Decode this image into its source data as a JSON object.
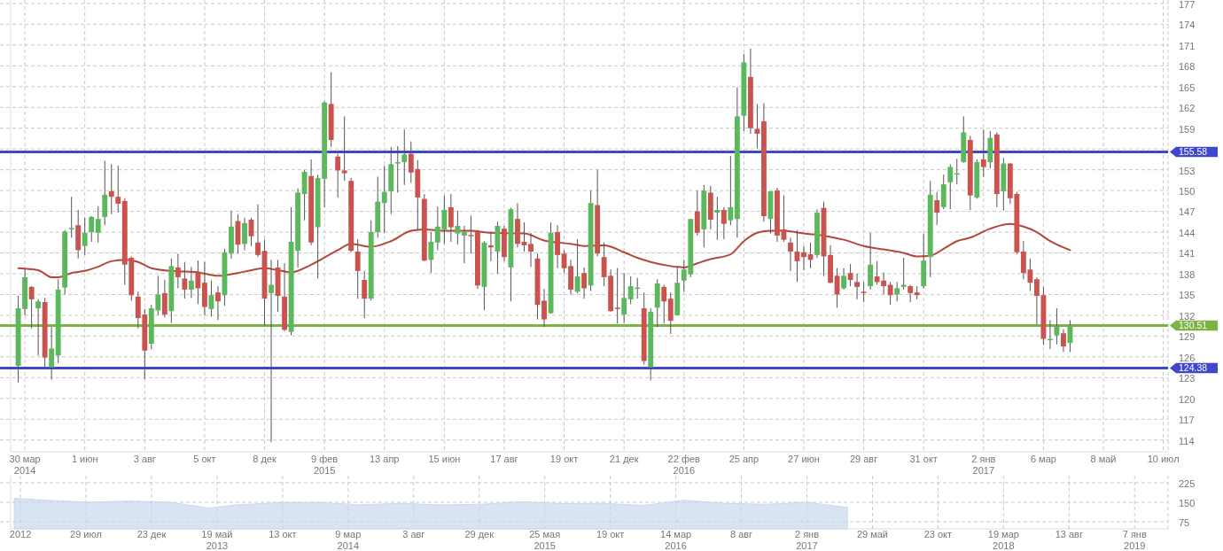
{
  "chart_data": [
    {
      "type": "candlestick",
      "grid": true,
      "colors": [
        "#5cb85c",
        "#5cb85c",
        "#c9534f",
        "#5cb85c",
        "#c9534f",
        "#5cb85c",
        "#5cb85c",
        "#5cb85c",
        "#5cb85c",
        "#c9534f",
        "#5cb85c",
        "#5cb85c",
        "#5cb85c",
        "#5cb85c",
        "#c9534f",
        "#c9534f",
        "#c9534f",
        "#c9534f",
        "#c9534f",
        "#c9534f",
        "#5cb85c",
        "#5cb85c",
        "#c9534f",
        "#5cb85c",
        "#c9534f",
        "#c9534f",
        "#5cb85c",
        "#c9534f",
        "#c9534f",
        "#5cb85c",
        "#c9534f",
        "#5cb85c",
        "#5cb85c",
        "#c9534f",
        "#5cb85c",
        "#c9534f",
        "#c9534f",
        "#c9534f",
        "#5cb85c",
        "#c9534f",
        "#c9534f",
        "#5cb85c",
        "#5cb85c",
        "#5cb85c",
        "#c9534f",
        "#5cb85c",
        "#5cb85c",
        "#c9534f",
        "#c9534f",
        "#c9534f",
        "#c9534f",
        "#c9534f",
        "#c9534f",
        "#5cb85c",
        "#5cb85c",
        "#5cb85c",
        "#5cb85c",
        "#5cb85c",
        "#5cb85c",
        "#c9534f",
        "#c9534f",
        "#c9534f",
        "#5cb85c",
        "#5cb85c",
        "#5cb85c",
        "#c9534f",
        "#5cb85c",
        "#5cb85c",
        "#c9534f",
        "#c9534f",
        "#5cb85c",
        "#c9534f",
        "#5cb85c",
        "#c9534f",
        "#5cb85c",
        "#c9534f",
        "#c9534f",
        "#c9534f",
        "#c9534f",
        "#c9534f",
        "#5cb85c",
        "#c9534f",
        "#c9534f",
        "#c9534f",
        "#5cb85c",
        "#c9534f",
        "#5cb85c",
        "#c9534f",
        "#c9534f",
        "#c9534f",
        "#c9534f",
        "#5cb85c",
        "#5cb85c",
        "#5cb85c",
        "#c9534f",
        "#5cb85c",
        "#5cb85c",
        "#c9534f",
        "#c9534f",
        "#5cb85c",
        "#5cb85c",
        "#5cb85c",
        "#c9534f",
        "#5cb85c",
        "#c9534f",
        "#5cb85c",
        "#c9534f",
        "#5cb85c",
        "#5cb85c",
        "#5cb85c",
        "#c9534f",
        "#c9534f",
        "#c9534f",
        "#5cb85c",
        "#c9534f",
        "#c9534f",
        "#c9534f",
        "#c9534f",
        "#c9534f",
        "#c9534f",
        "#5cb85c",
        "#c9534f",
        "#c9534f",
        "#c9534f",
        "#5cb85c",
        "#c9534f",
        "#c9534f",
        "#c9534f",
        "#5cb85c",
        "#c9534f",
        "#c9534f",
        "#c9534f",
        "#5cb85c",
        "#5cb85c",
        "#c9534f",
        "#c9534f",
        "#5cb85c",
        "#5cb85c",
        "#c9534f",
        "#5cb85c",
        "#5cb85c",
        "#5cb85c",
        "#5cb85c",
        "#c9534f",
        "#5cb85c",
        "#c9534f",
        "#5cb85c",
        "#c9534f",
        "#5cb85c",
        "#c9534f",
        "#c9534f",
        "#c9534f",
        "#c9534f",
        "#c9534f",
        "#c9534f",
        "#5cb85c",
        "#5cb85c",
        "#c9534f",
        "#5cb85c"
      ],
      "xlim": [
        "2014-03-15",
        "2017-07-14"
      ],
      "ylim": [
        112.3,
        177.5
      ],
      "xticks": [
        {
          "value": "2014-03-30",
          "label": "30 мар\n2014"
        },
        {
          "value": "2014-06-01",
          "label": "1 июн"
        },
        {
          "value": "2014-08-03",
          "label": "3 авг"
        },
        {
          "value": "2014-10-05",
          "label": "5 окт"
        },
        {
          "value": "2014-12-07",
          "label": "8 дек"
        },
        {
          "value": "2015-02-08",
          "label": "9 фев\n2015"
        },
        {
          "value": "2015-04-12",
          "label": "13 апр"
        },
        {
          "value": "2015-06-14",
          "label": "15 июн"
        },
        {
          "value": "2015-08-16",
          "label": "17 авг"
        },
        {
          "value": "2015-10-18",
          "label": "19 окт"
        },
        {
          "value": "2015-12-20",
          "label": "21 дек"
        },
        {
          "value": "2016-02-21",
          "label": "22 фев\n2016"
        },
        {
          "value": "2016-04-24",
          "label": "25 апр"
        },
        {
          "value": "2016-06-26",
          "label": "27 июн"
        },
        {
          "value": "2016-08-28",
          "label": "29 авг"
        },
        {
          "value": "2016-10-30",
          "label": "31 окт"
        },
        {
          "value": "2017-01-01",
          "label": "2 янв\n2017"
        },
        {
          "value": "2017-03-05",
          "label": "6 мар"
        },
        {
          "value": "2017-05-07",
          "label": "8 май"
        },
        {
          "value": "2017-07-09",
          "label": "10 июл"
        }
      ],
      "yticks": [
        114,
        117,
        120,
        123,
        126,
        129,
        132,
        135,
        138,
        141,
        144,
        147,
        150,
        153,
        {
          "value": 156,
          "label": null
        },
        159,
        162,
        165,
        168,
        171,
        174,
        177
      ],
      "ref_lines": [
        {
          "axis": "y",
          "value": 155.58,
          "label": "155.58",
          "color": "#3f48cc"
        },
        {
          "axis": "y",
          "value": 130.51,
          "label": "130.51",
          "color": "#7cb342"
        },
        {
          "axis": "y",
          "value": 124.38,
          "label": "124.38",
          "color": "#3f48cc"
        }
      ],
      "x": [
        "2014-03-23",
        "2014-03-30",
        "2014-04-06",
        "2014-04-13",
        "2014-04-20",
        "2014-04-27",
        "2014-05-04",
        "2014-05-11",
        "2014-05-18",
        "2014-05-25",
        "2014-06-01",
        "2014-06-08",
        "2014-06-15",
        "2014-06-22",
        "2014-06-29",
        "2014-07-06",
        "2014-07-13",
        "2014-07-20",
        "2014-07-27",
        "2014-08-03",
        "2014-08-10",
        "2014-08-17",
        "2014-08-24",
        "2014-08-31",
        "2014-09-07",
        "2014-09-14",
        "2014-09-21",
        "2014-09-28",
        "2014-10-05",
        "2014-10-12",
        "2014-10-19",
        "2014-10-26",
        "2014-11-02",
        "2014-11-09",
        "2014-11-16",
        "2014-11-23",
        "2014-11-30",
        "2014-12-07",
        "2014-12-14",
        "2014-12-21",
        "2014-12-28",
        "2015-01-04",
        "2015-01-11",
        "2015-01-18",
        "2015-01-25",
        "2015-02-01",
        "2015-02-08",
        "2015-02-15",
        "2015-02-22",
        "2015-03-01",
        "2015-03-08",
        "2015-03-15",
        "2015-03-22",
        "2015-03-29",
        "2015-04-05",
        "2015-04-12",
        "2015-04-19",
        "2015-04-26",
        "2015-05-03",
        "2015-05-10",
        "2015-05-17",
        "2015-05-24",
        "2015-05-31",
        "2015-06-07",
        "2015-06-14",
        "2015-06-21",
        "2015-06-28",
        "2015-07-05",
        "2015-07-12",
        "2015-07-19",
        "2015-07-26",
        "2015-08-02",
        "2015-08-09",
        "2015-08-16",
        "2015-08-23",
        "2015-08-30",
        "2015-09-06",
        "2015-09-13",
        "2015-09-20",
        "2015-09-27",
        "2015-10-04",
        "2015-10-11",
        "2015-10-18",
        "2015-10-25",
        "2015-11-01",
        "2015-11-08",
        "2015-11-15",
        "2015-11-22",
        "2015-11-29",
        "2015-12-06",
        "2015-12-13",
        "2015-12-20",
        "2015-12-27",
        "2016-01-03",
        "2016-01-10",
        "2016-01-17",
        "2016-01-24",
        "2016-01-31",
        "2016-02-07",
        "2016-02-14",
        "2016-02-21",
        "2016-02-28",
        "2016-03-06",
        "2016-03-13",
        "2016-03-20",
        "2016-03-27",
        "2016-04-03",
        "2016-04-10",
        "2016-04-17",
        "2016-04-24",
        "2016-05-01",
        "2016-05-08",
        "2016-05-15",
        "2016-05-22",
        "2016-05-29",
        "2016-06-05",
        "2016-06-12",
        "2016-06-19",
        "2016-06-26",
        "2016-07-03",
        "2016-07-10",
        "2016-07-17",
        "2016-07-24",
        "2016-07-31",
        "2016-08-07",
        "2016-08-14",
        "2016-08-21",
        "2016-08-28",
        "2016-09-04",
        "2016-09-11",
        "2016-09-18",
        "2016-09-25",
        "2016-10-02",
        "2016-10-09",
        "2016-10-16",
        "2016-10-23",
        "2016-10-30",
        "2016-11-06",
        "2016-11-13",
        "2016-11-20",
        "2016-11-27",
        "2016-12-04",
        "2016-12-11",
        "2016-12-18",
        "2016-12-25",
        "2017-01-01",
        "2017-01-08",
        "2017-01-15",
        "2017-01-22",
        "2017-01-29",
        "2017-02-05",
        "2017-02-12",
        "2017-02-19",
        "2017-02-26",
        "2017-03-05",
        "2017-03-12",
        "2017-03-19",
        "2017-03-26",
        "2017-04-02"
      ],
      "ohlc": [
        [
          124.7,
          134.8,
          122.3,
          133.0
        ],
        [
          132.9,
          138.6,
          132.0,
          137.5
        ],
        [
          136.1,
          136.2,
          130.1,
          134.3
        ],
        [
          133.0,
          134.3,
          126.2,
          134.0
        ],
        [
          133.9,
          134.5,
          124.5,
          125.9
        ],
        [
          124.5,
          130.3,
          122.7,
          127.2
        ],
        [
          126.2,
          137.2,
          125.1,
          135.7
        ],
        [
          136.0,
          144.3,
          135.0,
          144.1
        ],
        [
          144.4,
          149.1,
          143.2,
          144.6
        ],
        [
          145.0,
          147.2,
          140.2,
          141.4
        ],
        [
          142.0,
          146.1,
          140.7,
          143.9
        ],
        [
          144.0,
          146.3,
          142.6,
          146.2
        ],
        [
          143.9,
          147.7,
          142.5,
          145.9
        ],
        [
          146.2,
          154.3,
          145.0,
          149.4
        ],
        [
          149.9,
          153.8,
          146.6,
          149.1
        ],
        [
          149.1,
          153.6,
          146.8,
          148.1
        ],
        [
          148.5,
          148.9,
          136.4,
          139.3
        ],
        [
          140.3,
          140.5,
          134.1,
          134.9
        ],
        [
          134.7,
          135.4,
          130.1,
          131.6
        ],
        [
          132.1,
          132.9,
          122.8,
          126.9
        ],
        [
          127.9,
          133.5,
          127.1,
          133.0
        ],
        [
          132.7,
          137.7,
          132.0,
          135.0
        ],
        [
          135.2,
          137.1,
          131.7,
          132.1
        ],
        [
          132.6,
          140.2,
          130.9,
          139.1
        ],
        [
          138.9,
          140.9,
          135.9,
          137.5
        ],
        [
          137.3,
          139.7,
          134.4,
          135.7
        ],
        [
          135.7,
          139.0,
          134.5,
          137.0
        ],
        [
          138.2,
          139.9,
          133.6,
          135.9
        ],
        [
          136.7,
          139.7,
          132.0,
          133.2
        ],
        [
          132.9,
          137.0,
          131.8,
          134.9
        ],
        [
          135.3,
          136.2,
          131.3,
          134.0
        ],
        [
          134.9,
          141.6,
          133.4,
          141.1
        ],
        [
          140.9,
          147.1,
          140.2,
          144.8
        ],
        [
          145.6,
          146.6,
          140.9,
          142.2
        ],
        [
          142.3,
          146.1,
          141.4,
          145.3
        ],
        [
          145.8,
          146.1,
          142.0,
          143.4
        ],
        [
          142.5,
          148.0,
          140.4,
          140.7
        ],
        [
          141.3,
          142.9,
          130.5,
          134.4
        ],
        [
          135.2,
          140.0,
          113.7,
          136.4
        ],
        [
          138.9,
          140.0,
          132.5,
          134.8
        ],
        [
          134.7,
          139.5,
          129.7,
          129.9
        ],
        [
          129.6,
          147.6,
          129.1,
          142.6
        ],
        [
          141.3,
          150.3,
          138.9,
          149.7
        ],
        [
          149.5,
          153.0,
          145.7,
          152.7
        ],
        [
          152.1,
          154.5,
          142.1,
          142.5
        ],
        [
          144.7,
          152.3,
          137.3,
          151.8
        ],
        [
          151.7,
          162.9,
          147.6,
          162.7
        ],
        [
          162.5,
          167.1,
          156.3,
          157.3
        ],
        [
          154.9,
          155.3,
          149.0,
          152.9
        ],
        [
          152.9,
          160.7,
          151.4,
          152.5
        ],
        [
          151.4,
          151.8,
          141.1,
          141.3
        ],
        [
          141.2,
          143.0,
          134.4,
          138.4
        ],
        [
          137.1,
          138.4,
          131.6,
          134.4
        ],
        [
          134.4,
          145.7,
          134.1,
          144.0
        ],
        [
          144.0,
          152.0,
          143.2,
          148.4
        ],
        [
          148.2,
          153.6,
          143.9,
          149.8
        ],
        [
          149.9,
          156.3,
          146.6,
          153.8
        ],
        [
          153.9,
          156.4,
          149.7,
          154.1
        ],
        [
          154.1,
          158.8,
          150.8,
          155.2
        ],
        [
          155.3,
          157.1,
          151.1,
          152.6
        ],
        [
          153.1,
          154.4,
          144.3,
          149.0
        ],
        [
          148.8,
          149.5,
          139.8,
          139.9
        ],
        [
          140.0,
          144.0,
          138.1,
          142.6
        ],
        [
          142.5,
          147.7,
          141.4,
          144.8
        ],
        [
          144.4,
          149.3,
          142.3,
          147.2
        ],
        [
          147.6,
          149.5,
          142.6,
          144.7
        ],
        [
          143.8,
          147.1,
          142.2,
          144.9
        ],
        [
          143.5,
          144.9,
          139.5,
          144.0
        ],
        [
          143.6,
          146.4,
          140.9,
          143.5
        ],
        [
          144.0,
          144.3,
          135.8,
          136.3
        ],
        [
          136.1,
          142.7,
          132.7,
          142.5
        ],
        [
          142.1,
          144.0,
          139.8,
          141.8
        ],
        [
          141.2,
          145.5,
          138.0,
          144.9
        ],
        [
          144.5,
          144.9,
          139.8,
          140.4
        ],
        [
          138.9,
          147.5,
          134.0,
          147.3
        ],
        [
          145.9,
          148.2,
          141.8,
          142.3
        ],
        [
          142.6,
          145.4,
          141.2,
          142.1
        ],
        [
          142.3,
          143.9,
          139.0,
          141.2
        ],
        [
          140.2,
          140.9,
          131.4,
          133.5
        ],
        [
          134.1,
          135.8,
          130.3,
          131.4
        ],
        [
          132.3,
          145.4,
          132.2,
          143.9
        ],
        [
          144.0,
          145.0,
          138.8,
          140.7
        ],
        [
          140.9,
          141.4,
          138.1,
          138.8
        ],
        [
          139.1,
          140.0,
          135.0,
          135.7
        ],
        [
          135.4,
          143.0,
          135.2,
          137.6
        ],
        [
          138.1,
          138.9,
          134.4,
          135.9
        ],
        [
          136.3,
          150.0,
          135.5,
          148.2
        ],
        [
          147.9,
          153.0,
          140.5,
          140.9
        ],
        [
          140.4,
          142.5,
          136.2,
          137.5
        ],
        [
          137.7,
          138.6,
          132.5,
          132.6
        ],
        [
          133.1,
          138.8,
          130.8,
          132.9
        ],
        [
          132.1,
          138.1,
          130.9,
          134.5
        ],
        [
          134.3,
          137.6,
          133.6,
          136.2
        ],
        [
          135.9,
          137.4,
          134.4,
          136.0
        ],
        [
          133.0,
          135.3,
          124.9,
          125.4
        ],
        [
          124.5,
          133.0,
          122.6,
          132.5
        ],
        [
          133.1,
          137.2,
          130.3,
          136.6
        ],
        [
          136.1,
          136.4,
          130.8,
          134.0
        ],
        [
          134.4,
          135.3,
          129.3,
          131.2
        ],
        [
          132.0,
          138.9,
          132.0,
          136.7
        ],
        [
          137.0,
          140.0,
          135.4,
          138.6
        ],
        [
          137.9,
          145.9,
          137.5,
          145.9
        ],
        [
          147.0,
          150.0,
          143.5,
          143.9
        ],
        [
          144.4,
          150.8,
          141.8,
          150.0
        ],
        [
          149.7,
          150.7,
          144.4,
          145.8
        ],
        [
          146.8,
          149.1,
          142.9,
          147.2
        ],
        [
          147.2,
          147.6,
          143.0,
          145.2
        ],
        [
          145.7,
          155.0,
          145.0,
          147.6
        ],
        [
          145.9,
          164.9,
          143.2,
          160.7
        ],
        [
          160.8,
          169.7,
          158.6,
          168.5
        ],
        [
          166.4,
          170.5,
          158.2,
          159.0
        ],
        [
          158.9,
          162.5,
          156.1,
          158.2
        ],
        [
          160.0,
          162.6,
          145.5,
          146.3
        ],
        [
          145.9,
          149.9,
          143.8,
          149.9
        ],
        [
          150.0,
          150.4,
          142.6,
          143.5
        ],
        [
          144.4,
          149.3,
          142.6,
          142.9
        ],
        [
          142.5,
          143.2,
          138.4,
          141.2
        ],
        [
          141.2,
          144.3,
          136.8,
          139.8
        ],
        [
          141.1,
          142.0,
          138.5,
          140.4
        ],
        [
          140.8,
          142.5,
          138.8,
          140.0
        ],
        [
          140.7,
          147.3,
          140.3,
          146.8
        ],
        [
          147.5,
          148.4,
          137.7,
          140.5
        ],
        [
          140.7,
          142.1,
          136.6,
          136.7
        ],
        [
          137.7,
          138.8,
          133.1,
          135.0
        ],
        [
          135.9,
          138.8,
          135.7,
          137.7
        ],
        [
          138.1,
          139.4,
          136.2,
          137.1
        ],
        [
          136.8,
          138.0,
          134.3,
          136.1
        ],
        [
          135.4,
          136.8,
          133.9,
          135.3
        ],
        [
          136.2,
          143.9,
          135.7,
          139.3
        ],
        [
          137.6,
          139.8,
          136.4,
          136.8
        ],
        [
          137.0,
          138.2,
          135.0,
          136.2
        ],
        [
          136.4,
          136.8,
          133.5,
          134.9
        ],
        [
          135.0,
          136.8,
          134.0,
          135.9
        ],
        [
          136.1,
          140.3,
          135.7,
          136.4
        ],
        [
          136.2,
          136.4,
          133.9,
          135.2
        ],
        [
          135.3,
          136.2,
          134.3,
          134.9
        ],
        [
          136.2,
          143.8,
          135.9,
          139.9
        ],
        [
          140.4,
          151.4,
          137.5,
          149.4
        ],
        [
          148.6,
          149.8,
          145.0,
          146.8
        ],
        [
          147.6,
          152.3,
          147.3,
          150.9
        ],
        [
          151.2,
          153.8,
          147.3,
          153.4
        ],
        [
          152.3,
          154.6,
          150.9,
          152.5
        ],
        [
          154.1,
          160.7,
          154.0,
          158.4
        ],
        [
          157.3,
          157.9,
          147.2,
          149.3
        ],
        [
          149.0,
          154.5,
          148.8,
          154.1
        ],
        [
          154.5,
          158.8,
          152.0,
          153.4
        ],
        [
          154.1,
          158.6,
          153.2,
          157.6
        ],
        [
          158.1,
          158.4,
          147.6,
          149.5
        ],
        [
          149.9,
          154.7,
          147.1,
          153.9
        ],
        [
          153.9,
          154.0,
          148.1,
          148.9
        ],
        [
          149.5,
          149.8,
          140.8,
          141.1
        ],
        [
          141.2,
          142.7,
          137.2,
          138.1
        ],
        [
          138.6,
          140.2,
          135.5,
          136.7
        ],
        [
          137.2,
          137.5,
          130.7,
          134.8
        ],
        [
          134.9,
          136.1,
          127.7,
          128.6
        ],
        [
          128.4,
          131.3,
          127.1,
          128.6
        ],
        [
          129.1,
          133.0,
          127.8,
          130.4
        ],
        [
          129.4,
          130.0,
          126.7,
          127.5
        ],
        [
          128.0,
          131.3,
          126.7,
          130.5
        ]
      ],
      "series": [
        {
          "type": "line",
          "color": "#b5473a",
          "x": [
            "2014-03-23",
            "2014-04-13",
            "2014-04-27",
            "2014-05-04",
            "2014-05-18",
            "2014-06-01",
            "2014-06-15",
            "2014-06-29",
            "2014-07-13",
            "2014-07-27",
            "2014-08-10",
            "2014-08-31",
            "2014-09-28",
            "2014-10-19",
            "2014-11-16",
            "2014-12-07",
            "2014-12-21",
            "2015-01-04",
            "2015-01-25",
            "2015-02-22",
            "2015-03-08",
            "2015-03-29",
            "2015-04-19",
            "2015-05-10",
            "2015-05-24",
            "2015-06-14",
            "2015-07-12",
            "2015-08-02",
            "2015-09-06",
            "2015-09-27",
            "2015-10-25",
            "2015-11-08",
            "2015-11-29",
            "2015-12-20",
            "2016-01-03",
            "2016-01-17",
            "2016-02-07",
            "2016-02-21",
            "2016-03-06",
            "2016-03-20",
            "2016-04-10",
            "2016-04-24",
            "2016-05-08",
            "2016-05-22",
            "2016-06-05",
            "2016-06-26",
            "2016-07-17",
            "2016-07-24",
            "2016-08-07",
            "2016-08-28",
            "2016-09-18",
            "2016-10-09",
            "2016-10-23",
            "2016-11-06",
            "2016-11-20",
            "2016-12-04",
            "2016-12-18",
            "2017-01-08",
            "2017-01-29",
            "2017-02-12",
            "2017-02-26",
            "2017-03-12",
            "2017-04-02"
          ],
          "values": [
            138.8,
            138.5,
            137.5,
            137.5,
            138.1,
            138.4,
            139.0,
            139.8,
            140.0,
            139.7,
            138.8,
            138.4,
            138.2,
            137.7,
            138.3,
            138.8,
            138.5,
            138.2,
            139.3,
            141.4,
            142.3,
            141.9,
            142.7,
            144.2,
            144.4,
            144.2,
            144.2,
            143.9,
            143.8,
            142.8,
            142.3,
            142.0,
            142.1,
            141.1,
            140.3,
            139.7,
            139.1,
            138.9,
            139.5,
            140.1,
            140.8,
            142.7,
            143.9,
            144.2,
            144.2,
            143.8,
            143.5,
            143.3,
            142.9,
            142.0,
            141.5,
            141.0,
            140.5,
            140.6,
            141.6,
            142.7,
            143.2,
            144.5,
            145.2,
            144.8,
            144.0,
            142.7,
            141.4
          ]
        }
      ]
    },
    {
      "type": "area",
      "grid": true,
      "xlim": [
        "2012-02-11",
        "2019-03-22"
      ],
      "ylim": [
        48,
        252
      ],
      "xticks": [
        {
          "value": "2012-03-04",
          "label": "2012"
        },
        {
          "value": "2012-07-29",
          "label": "29 июл"
        },
        {
          "value": "2012-12-23",
          "label": "23 дек"
        },
        {
          "value": "2013-05-19",
          "label": "19 май\n2013"
        },
        {
          "value": "2013-10-13",
          "label": "13 окт"
        },
        {
          "value": "2014-03-09",
          "label": "9 мар\n2014"
        },
        {
          "value": "2014-08-03",
          "label": "3 авг"
        },
        {
          "value": "2014-12-28",
          "label": "29 дек"
        },
        {
          "value": "2015-05-24",
          "label": "25 мая\n2015"
        },
        {
          "value": "2015-10-18",
          "label": "19 окт"
        },
        {
          "value": "2016-03-13",
          "label": "14 мар\n2016"
        },
        {
          "value": "2016-08-07",
          "label": "8 авг"
        },
        {
          "value": "2017-01-01",
          "label": "2 янв\n2017"
        },
        {
          "value": "2017-05-28",
          "label": "29 май"
        },
        {
          "value": "2017-10-22",
          "label": "23 окт"
        },
        {
          "value": "2018-03-18",
          "label": "19 мар\n2018"
        },
        {
          "value": "2018-08-12",
          "label": "13 авг"
        },
        {
          "value": "2019-01-06",
          "label": "7 янв\n2019"
        }
      ],
      "yticks": [
        75,
        150,
        225
      ],
      "series": [
        {
          "color": "#c9d9ec",
          "x": [
            "2012-02-19",
            "2012-05-01",
            "2012-08-01",
            "2012-11-01",
            "2013-02-01",
            "2013-05-01",
            "2013-07-01",
            "2013-10-01",
            "2014-01-01",
            "2014-04-01",
            "2014-07-01",
            "2014-10-01",
            "2015-01-01",
            "2015-04-01",
            "2015-07-01",
            "2015-10-01",
            "2016-01-01",
            "2016-04-01",
            "2016-07-01",
            "2016-10-01",
            "2017-01-01",
            "2017-04-02"
          ],
          "values": [
            165,
            158,
            150,
            155,
            150,
            128,
            140,
            148,
            150,
            140,
            146,
            140,
            142,
            152,
            145,
            146,
            138,
            158,
            146,
            142,
            150,
            130
          ]
        }
      ]
    }
  ]
}
